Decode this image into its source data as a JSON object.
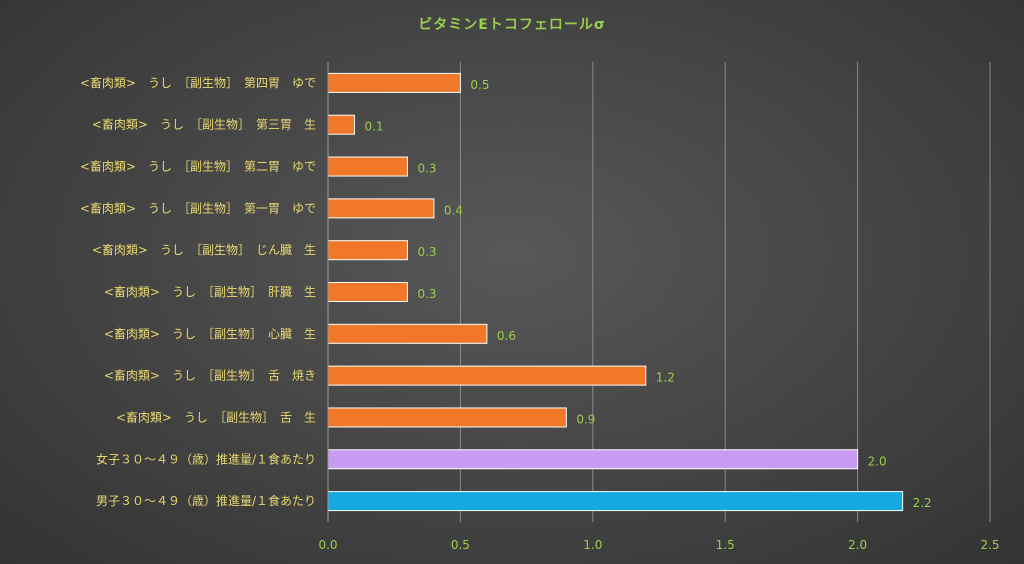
{
  "chart_data": {
    "type": "bar",
    "orientation": "horizontal",
    "title": "ビタミンEトコフェロールσ",
    "categories": [
      "<畜肉類>　うし　［副生物］　第四胃　ゆで",
      "<畜肉類>　うし　［副生物］　第三胃　生",
      "<畜肉類>　うし　［副生物］　第二胃　ゆで",
      "<畜肉類>　うし　［副生物］　第一胃　ゆで",
      "<畜肉類>　うし　［副生物］　じん臓　生",
      "<畜肉類>　うし　［副生物］　肝臓　生",
      "<畜肉類>　うし　［副生物］　心臓　生",
      "<畜肉類>　うし　［副生物］　舌　焼き",
      "<畜肉類>　うし　［副生物］　舌　生",
      "女子３０～４９（歳）推進量/１食あたり",
      "男子３０～４９（歳）推進量/１食あたり"
    ],
    "values": [
      0.5,
      0.1,
      0.3,
      0.4,
      0.3,
      0.3,
      0.6,
      1.2,
      0.9,
      2.0,
      2.17
    ],
    "data_labels": [
      "0.5",
      "0.1",
      "0.3",
      "0.4",
      "0.3",
      "0.3",
      "0.6",
      "1.2",
      "0.9",
      "2.0",
      "2.2"
    ],
    "bar_colors": [
      "#F07828",
      "#F07828",
      "#F07828",
      "#F07828",
      "#F07828",
      "#F07828",
      "#F07828",
      "#F07828",
      "#F07828",
      "#C79BF2",
      "#16A8E0"
    ],
    "xlim": [
      0,
      2.5
    ],
    "xticks": [
      "0.0",
      "0.5",
      "1.0",
      "1.5",
      "2.0",
      "2.5"
    ],
    "xlabel": "",
    "ylabel": "",
    "grid": "vertical",
    "legend": "none",
    "colors": {
      "title": "#9ACD4A",
      "category_label": "#E8D870",
      "value_label": "#9ACD4A",
      "tick_label": "#9ACD4A",
      "gridline": "#8a8a8a",
      "bar_outline": "#ffffff"
    }
  }
}
